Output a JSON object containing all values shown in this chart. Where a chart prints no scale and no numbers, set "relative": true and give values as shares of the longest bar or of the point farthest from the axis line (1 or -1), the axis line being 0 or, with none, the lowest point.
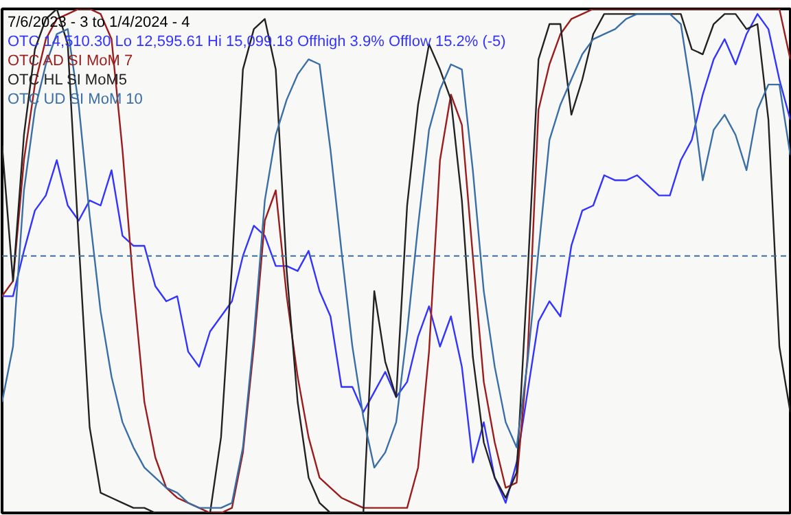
{
  "chart_data": {
    "type": "line",
    "title": "7/6/2023 - 3 to 1/4/2024 - 4",
    "relative": true,
    "tick_labels": false,
    "grid": false,
    "marker": "none",
    "line_style": "solid",
    "categories": [
      null,
      null,
      null,
      null,
      null,
      null,
      null,
      null,
      null,
      null,
      null,
      null,
      null,
      null,
      null,
      null,
      null,
      null,
      null,
      null,
      null,
      null,
      null,
      null,
      null,
      null,
      null,
      null,
      null,
      null,
      null,
      null,
      null,
      null,
      null,
      null,
      null,
      null,
      null,
      null,
      null,
      null,
      null,
      null,
      null,
      null,
      null,
      null,
      null,
      null,
      null,
      null,
      null,
      null,
      null,
      null,
      null,
      null,
      null,
      null,
      null,
      null,
      null,
      null,
      null,
      null,
      null,
      null,
      null,
      null,
      null,
      null,
      null
    ],
    "series": [
      {
        "name": "OTC 14,510.30 Lo 12,595.61 Hi 15,099.18  Offhigh 3.9%  Offlow 15.2% (-5)",
        "color": "#3333ff",
        "values": [
          0.43,
          0.43,
          0.52,
          0.6,
          0.63,
          0.7,
          0.61,
          0.58,
          0.62,
          0.61,
          0.68,
          0.55,
          0.53,
          0.53,
          0.45,
          0.42,
          0.43,
          0.32,
          0.29,
          0.36,
          0.39,
          0.42,
          0.51,
          0.57,
          0.55,
          0.49,
          0.49,
          0.48,
          0.52,
          0.44,
          0.39,
          0.25,
          0.25,
          0.2,
          0.24,
          0.28,
          0.23,
          0.26,
          0.35,
          0.41,
          0.33,
          0.39,
          0.29,
          0.1,
          0.18,
          0.07,
          0.02,
          0.1,
          0.24,
          0.38,
          0.42,
          0.39,
          0.53,
          0.6,
          0.61,
          0.67,
          0.66,
          0.66,
          0.67,
          0.65,
          0.63,
          0.63,
          0.7,
          0.74,
          0.83,
          0.9,
          0.94,
          0.89,
          0.95,
          0.99,
          0.96,
          0.86,
          0.78
        ]
      },
      {
        "name": "OTC AD SI MoM 7",
        "color": "#9b1c1c",
        "values": [
          0.43,
          0.46,
          0.7,
          0.85,
          0.94,
          0.98,
          0.99,
          1.0,
          1.0,
          0.99,
          0.94,
          0.72,
          0.45,
          0.22,
          0.11,
          0.05,
          0.03,
          0.02,
          0.01,
          0.0,
          0.0,
          0.01,
          0.12,
          0.33,
          0.58,
          0.64,
          0.43,
          0.27,
          0.15,
          0.07,
          0.05,
          0.03,
          0.02,
          0.01,
          0.01,
          0.01,
          0.01,
          0.01,
          0.09,
          0.32,
          0.7,
          0.83,
          0.77,
          0.51,
          0.26,
          0.14,
          0.05,
          0.06,
          0.31,
          0.8,
          0.89,
          0.95,
          0.98,
          0.99,
          1.0,
          1.0,
          1.0,
          1.0,
          1.0,
          1.0,
          1.0,
          1.0,
          1.0,
          1.0,
          1.0,
          1.0,
          1.0,
          1.0,
          1.0,
          1.0,
          1.0,
          1.0,
          0.9
        ]
      },
      {
        "name": "OTC HL SI MoM5",
        "color": "#222222",
        "values": [
          0.73,
          0.46,
          0.75,
          0.92,
          0.98,
          1.0,
          0.93,
          0.54,
          0.17,
          0.04,
          0.03,
          0.02,
          0.01,
          0.01,
          0.0,
          0.0,
          0.0,
          0.0,
          0.0,
          0.0,
          0.15,
          0.49,
          0.88,
          0.96,
          0.98,
          0.88,
          0.48,
          0.22,
          0.07,
          0.02,
          0.0,
          0.0,
          0.0,
          0.0,
          0.44,
          0.3,
          0.23,
          0.61,
          0.81,
          0.93,
          0.88,
          0.82,
          0.62,
          0.31,
          0.14,
          0.07,
          0.03,
          0.08,
          0.47,
          0.9,
          0.97,
          0.97,
          0.79,
          0.86,
          0.95,
          0.99,
          0.99,
          0.99,
          0.99,
          0.99,
          0.99,
          0.99,
          0.99,
          0.92,
          0.91,
          0.97,
          0.99,
          0.99,
          0.96,
          0.97,
          0.78,
          0.33,
          0.2
        ]
      },
      {
        "name": "OTC UD SI MoM 10",
        "color": "#3a6ea5",
        "values": [
          0.22,
          0.33,
          0.64,
          0.8,
          0.89,
          0.95,
          0.96,
          0.81,
          0.59,
          0.4,
          0.27,
          0.18,
          0.13,
          0.09,
          0.07,
          0.05,
          0.04,
          0.02,
          0.01,
          0.01,
          0.01,
          0.02,
          0.13,
          0.35,
          0.62,
          0.75,
          0.82,
          0.87,
          0.9,
          0.89,
          0.72,
          0.52,
          0.33,
          0.19,
          0.09,
          0.12,
          0.18,
          0.36,
          0.57,
          0.76,
          0.84,
          0.89,
          0.88,
          0.68,
          0.44,
          0.29,
          0.18,
          0.13,
          0.3,
          0.52,
          0.74,
          0.81,
          0.86,
          0.91,
          0.94,
          0.95,
          0.96,
          0.98,
          0.99,
          0.99,
          0.99,
          0.99,
          0.97,
          0.83,
          0.66,
          0.76,
          0.79,
          0.75,
          0.68,
          0.8,
          0.85,
          0.85,
          0.71
        ]
      }
    ],
    "ref_lines": [
      {
        "axis": "y",
        "value": 0.51,
        "color": "#3a6ea5",
        "line_style": "dashed"
      }
    ]
  }
}
